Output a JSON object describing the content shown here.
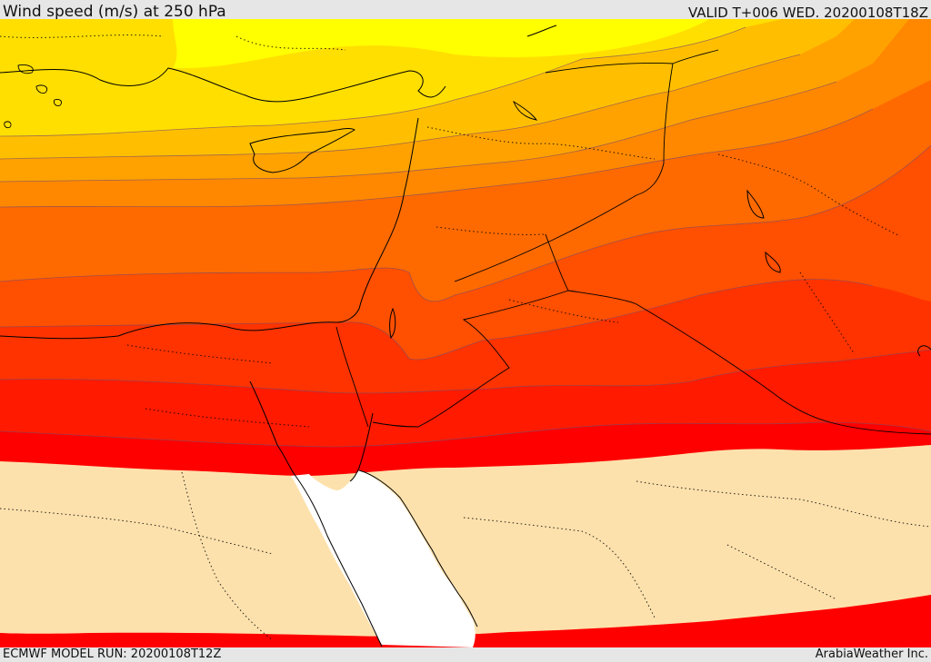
{
  "header": {
    "title": "Wind speed (m/s) at 250 hPa",
    "valid": "VALID T+006 WED. 20200108T18Z"
  },
  "footer": {
    "model_run": "ECMWF MODEL RUN: 20200108T12Z",
    "credit": "ArabiaWeather Inc."
  },
  "map": {
    "variable": "wind speed at 250 hPa",
    "bands": [
      {
        "name": "band-1",
        "color": "#ffff00"
      },
      {
        "name": "band-2",
        "color": "#ffdf00"
      },
      {
        "name": "band-3",
        "color": "#ffbf00"
      },
      {
        "name": "band-4",
        "color": "#ffa200"
      },
      {
        "name": "band-5",
        "color": "#ff8800"
      },
      {
        "name": "band-6",
        "color": "#ff6a00"
      },
      {
        "name": "band-7",
        "color": "#ff4f00"
      },
      {
        "name": "band-8",
        "color": "#ff3300"
      },
      {
        "name": "band-9",
        "color": "#ff1a00"
      },
      {
        "name": "band-10",
        "color": "#ff0000"
      },
      {
        "name": "low-wind",
        "color": "#fde1ac"
      },
      {
        "name": "sea",
        "color": "#ffffff"
      }
    ]
  }
}
